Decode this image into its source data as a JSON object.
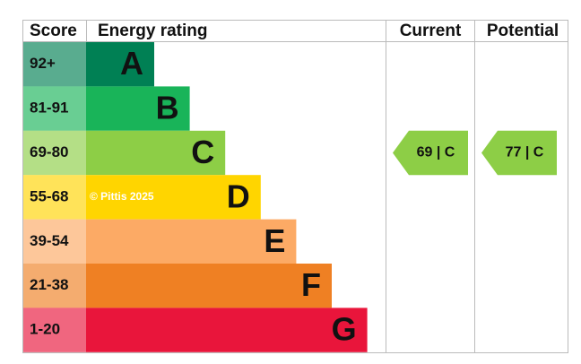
{
  "header": {
    "score": "Score",
    "rating": "Energy rating",
    "current": "Current",
    "potential": "Potential"
  },
  "bands": [
    {
      "score": "92+",
      "letter": "A",
      "color": "#008054"
    },
    {
      "score": "81-91",
      "letter": "B",
      "color": "#19b459"
    },
    {
      "score": "69-80",
      "letter": "C",
      "color": "#8dce46"
    },
    {
      "score": "55-68",
      "letter": "D",
      "color": "#ffd500"
    },
    {
      "score": "39-54",
      "letter": "E",
      "color": "#fcaa65"
    },
    {
      "score": "21-38",
      "letter": "F",
      "color": "#ef8023"
    },
    {
      "score": "1-20",
      "letter": "G",
      "color": "#e9153b"
    }
  ],
  "watermark": "© Pittis 2025",
  "current": {
    "label": "69 | C"
  },
  "potential": {
    "label": "77 | C"
  }
}
